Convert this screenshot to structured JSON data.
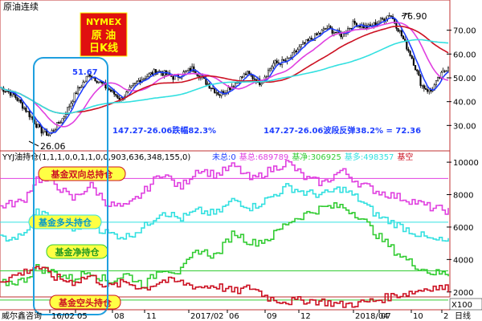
{
  "chart_data": [
    {
      "type": "candlestick",
      "title": "原油连续",
      "badge": {
        "line1": "NYMEX",
        "line2": "原 油",
        "line3": "日K线"
      },
      "ylim": [
        20,
        80
      ],
      "yticks": [
        30.0,
        40.0,
        50.0,
        60.0,
        70.0
      ],
      "ytick_labels": [
        "30.00",
        "40.00",
        "50.00",
        "60.00",
        "70.00"
      ],
      "annotations": {
        "high": "76.90",
        "low": "26.06",
        "swing_high": "51.67",
        "drop_note": "147.27-26.06跌幅82.3%",
        "rebound_note": "147.27-26.06波段反弹38.2% = 72.36"
      },
      "price_path": [
        [
          0,
          46
        ],
        [
          0.03,
          43
        ],
        [
          0.06,
          36
        ],
        [
          0.09,
          28
        ],
        [
          0.11,
          26.06
        ],
        [
          0.14,
          33
        ],
        [
          0.17,
          44
        ],
        [
          0.2,
          51.67
        ],
        [
          0.23,
          47
        ],
        [
          0.27,
          41
        ],
        [
          0.31,
          49
        ],
        [
          0.35,
          53
        ],
        [
          0.39,
          50
        ],
        [
          0.43,
          54
        ],
        [
          0.46,
          48
        ],
        [
          0.49,
          43
        ],
        [
          0.52,
          47
        ],
        [
          0.55,
          52
        ],
        [
          0.58,
          48
        ],
        [
          0.61,
          56
        ],
        [
          0.64,
          57
        ],
        [
          0.67,
          63
        ],
        [
          0.7,
          67
        ],
        [
          0.73,
          71
        ],
        [
          0.76,
          68
        ],
        [
          0.79,
          73
        ],
        [
          0.82,
          71
        ],
        [
          0.85,
          74
        ],
        [
          0.87,
          76.9
        ],
        [
          0.89,
          70
        ],
        [
          0.92,
          58
        ],
        [
          0.94,
          47
        ],
        [
          0.96,
          44
        ],
        [
          0.98,
          50
        ],
        [
          1.0,
          55
        ]
      ],
      "series": [
        {
          "name": "MA-short",
          "color": "#1f3fff"
        },
        {
          "name": "MA-mid",
          "color": "#e040e0"
        },
        {
          "name": "MA-long",
          "color": "#cc1122"
        },
        {
          "name": "MA-xlong",
          "color": "#33e0e0"
        }
      ]
    },
    {
      "type": "line",
      "indicator_header": "YYJ油持仓(1,1,1,0,0,1,1,0,0,903,636,348,155,0)",
      "indicator_values": [
        {
          "label": "未总:",
          "value": "0",
          "color": "#1f3fff"
        },
        {
          "label": "基总:",
          "value": "689789",
          "color": "#e040e0"
        },
        {
          "label": "基净:",
          "value": "306925",
          "color": "#33cc33"
        },
        {
          "label": "基多:",
          "value": "498357",
          "color": "#33e0e0"
        },
        {
          "label": "基空",
          "value": "",
          "color": "#cc1122"
        }
      ],
      "ylim": [
        1000,
        10500
      ],
      "yticks": [
        2000,
        4000,
        6000,
        8000,
        10000
      ],
      "ytick_labels": [
        "2000",
        "4000",
        "6000",
        "8000",
        "10000"
      ],
      "hlines": [
        {
          "value": 9000,
          "color": "#e040e0"
        },
        {
          "value": 6300,
          "color": "#33e0e0"
        },
        {
          "value": 3300,
          "color": "#33cc33"
        },
        {
          "value": 1500,
          "color": "#33cc33"
        }
      ],
      "series": [
        {
          "name": "基金双向总持仓",
          "color": "#e040e0",
          "points": [
            [
              0,
              7300
            ],
            [
              0.05,
              7600
            ],
            [
              0.08,
              9000
            ],
            [
              0.12,
              8700
            ],
            [
              0.16,
              7700
            ],
            [
              0.2,
              8600
            ],
            [
              0.24,
              7400
            ],
            [
              0.28,
              7200
            ],
            [
              0.32,
              8200
            ],
            [
              0.36,
              9400
            ],
            [
              0.4,
              8400
            ],
            [
              0.44,
              9600
            ],
            [
              0.48,
              9200
            ],
            [
              0.52,
              9800
            ],
            [
              0.56,
              8900
            ],
            [
              0.6,
              9500
            ],
            [
              0.64,
              10000
            ],
            [
              0.68,
              9000
            ],
            [
              0.72,
              8700
            ],
            [
              0.76,
              9500
            ],
            [
              0.8,
              8700
            ],
            [
              0.84,
              8200
            ],
            [
              0.88,
              7900
            ],
            [
              0.92,
              7600
            ],
            [
              0.96,
              7200
            ],
            [
              1.0,
              7000
            ]
          ]
        },
        {
          "name": "基金多头持仓",
          "color": "#33e0e0",
          "points": [
            [
              0,
              5300
            ],
            [
              0.05,
              5400
            ],
            [
              0.08,
              7000
            ],
            [
              0.12,
              6500
            ],
            [
              0.16,
              5800
            ],
            [
              0.2,
              6200
            ],
            [
              0.24,
              5600
            ],
            [
              0.28,
              5400
            ],
            [
              0.32,
              6000
            ],
            [
              0.36,
              7000
            ],
            [
              0.4,
              6500
            ],
            [
              0.44,
              7000
            ],
            [
              0.48,
              6800
            ],
            [
              0.52,
              7700
            ],
            [
              0.56,
              7200
            ],
            [
              0.6,
              7800
            ],
            [
              0.64,
              8500
            ],
            [
              0.68,
              8100
            ],
            [
              0.72,
              8000
            ],
            [
              0.76,
              8400
            ],
            [
              0.8,
              7700
            ],
            [
              0.84,
              6700
            ],
            [
              0.88,
              6200
            ],
            [
              0.92,
              5700
            ],
            [
              0.96,
              5200
            ],
            [
              1.0,
              5100
            ]
          ]
        },
        {
          "name": "基金净持仓",
          "color": "#33cc33",
          "points": [
            [
              0,
              2500
            ],
            [
              0.05,
              2700
            ],
            [
              0.08,
              3500
            ],
            [
              0.12,
              3200
            ],
            [
              0.16,
              2800
            ],
            [
              0.2,
              3300
            ],
            [
              0.24,
              2600
            ],
            [
              0.28,
              3100
            ],
            [
              0.32,
              2400
            ],
            [
              0.36,
              3500
            ],
            [
              0.4,
              3200
            ],
            [
              0.44,
              4600
            ],
            [
              0.48,
              4200
            ],
            [
              0.52,
              5700
            ],
            [
              0.56,
              5000
            ],
            [
              0.6,
              5300
            ],
            [
              0.64,
              6300
            ],
            [
              0.68,
              6800
            ],
            [
              0.72,
              7200
            ],
            [
              0.76,
              7300
            ],
            [
              0.8,
              6700
            ],
            [
              0.84,
              5500
            ],
            [
              0.88,
              4500
            ],
            [
              0.92,
              3700
            ],
            [
              0.96,
              3200
            ],
            [
              1.0,
              3100
            ]
          ]
        },
        {
          "name": "基金空头持仓",
          "color": "#cc1122",
          "points": [
            [
              0,
              2700
            ],
            [
              0.05,
              3200
            ],
            [
              0.08,
              3600
            ],
            [
              0.12,
              2900
            ],
            [
              0.16,
              2600
            ],
            [
              0.2,
              3000
            ],
            [
              0.24,
              2300
            ],
            [
              0.28,
              2600
            ],
            [
              0.32,
              2200
            ],
            [
              0.36,
              2700
            ],
            [
              0.4,
              2600
            ],
            [
              0.44,
              2300
            ],
            [
              0.48,
              2400
            ],
            [
              0.52,
              2000
            ],
            [
              0.56,
              2300
            ],
            [
              0.6,
              1600
            ],
            [
              0.64,
              1400
            ],
            [
              0.68,
              1500
            ],
            [
              0.72,
              1400
            ],
            [
              0.76,
              1200
            ],
            [
              0.8,
              1300
            ],
            [
              0.84,
              1500
            ],
            [
              0.88,
              1800
            ],
            [
              0.92,
              2000
            ],
            [
              0.96,
              2300
            ],
            [
              1.0,
              2200
            ]
          ]
        }
      ],
      "labels": [
        "基金双向总持仓",
        "基金多头持仓",
        "基金净持仓",
        "基金空头持仓"
      ]
    }
  ],
  "footer": {
    "company": "威尔鑫咨询",
    "date_ticks": [
      "16/02",
      "05",
      "08",
      "11",
      "2017/02",
      "06",
      "09",
      "12",
      "2018/04",
      "07",
      "10",
      "2"
    ],
    "unit": "X100",
    "period": "日线"
  }
}
